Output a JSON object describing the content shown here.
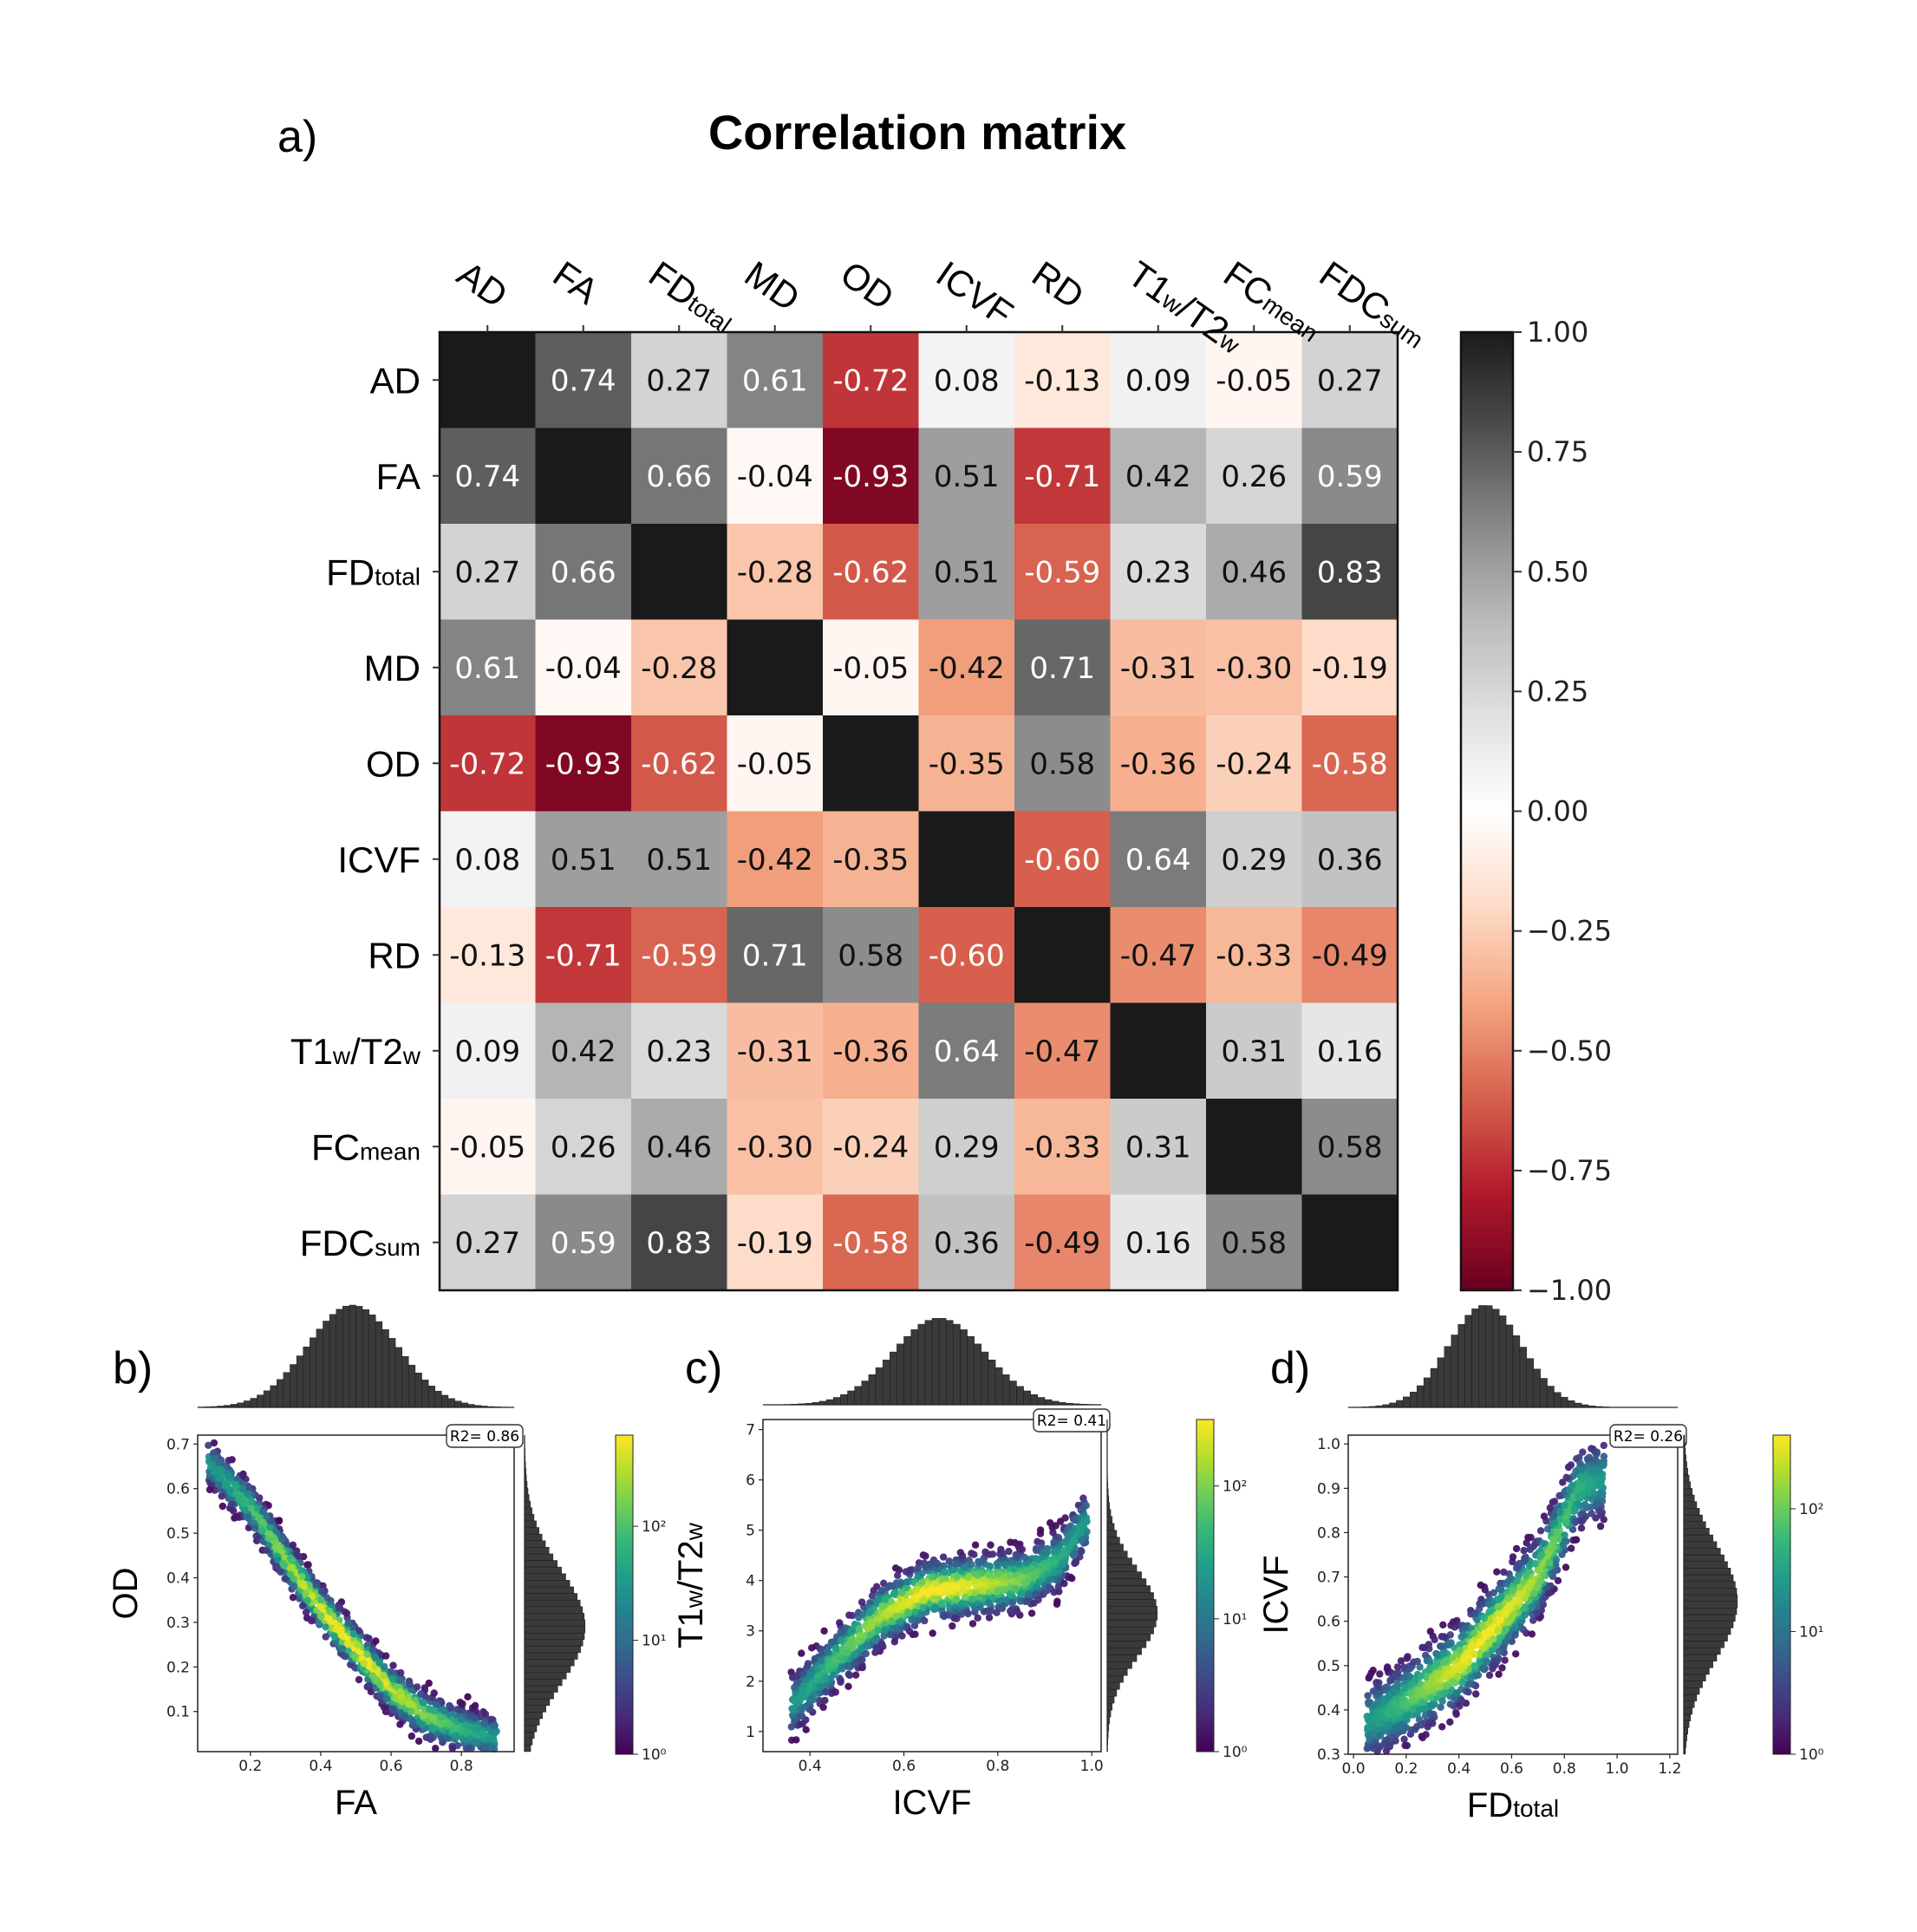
{
  "figure": {
    "panel_a": "a)",
    "panel_b": "b)",
    "panel_c": "c)",
    "panel_d": "d)"
  },
  "chart_data": [
    {
      "type": "heatmap",
      "title": "Correlation matrix",
      "labels": [
        {
          "main": "AD",
          "sub": ""
        },
        {
          "main": "FA",
          "sub": ""
        },
        {
          "main": "FD",
          "sub": "total"
        },
        {
          "main": "MD",
          "sub": ""
        },
        {
          "main": "OD",
          "sub": ""
        },
        {
          "main": "ICVF",
          "sub": ""
        },
        {
          "main": "RD",
          "sub": ""
        },
        {
          "main": "T1",
          "sub": "w",
          "main2": "/T2",
          "sub2": "w"
        },
        {
          "main": "FC",
          "sub": "mean"
        },
        {
          "main": "FDC",
          "sub": "sum"
        }
      ],
      "values": [
        [
          1.0,
          0.74,
          0.27,
          0.61,
          -0.72,
          0.08,
          -0.13,
          0.09,
          -0.05,
          0.27
        ],
        [
          0.74,
          1.0,
          0.66,
          -0.04,
          -0.93,
          0.51,
          -0.71,
          0.42,
          0.26,
          0.59
        ],
        [
          0.27,
          0.66,
          1.0,
          -0.28,
          -0.62,
          0.51,
          -0.59,
          0.23,
          0.46,
          0.83
        ],
        [
          0.61,
          -0.04,
          -0.28,
          1.0,
          -0.05,
          -0.42,
          0.71,
          -0.31,
          -0.3,
          -0.19
        ],
        [
          -0.72,
          -0.93,
          -0.62,
          -0.05,
          1.0,
          -0.35,
          0.58,
          -0.36,
          -0.24,
          -0.58
        ],
        [
          0.08,
          0.51,
          0.51,
          -0.42,
          -0.35,
          1.0,
          -0.6,
          0.64,
          0.29,
          0.36
        ],
        [
          -0.13,
          -0.71,
          -0.59,
          0.71,
          0.58,
          -0.6,
          1.0,
          -0.47,
          -0.33,
          -0.49
        ],
        [
          0.09,
          0.42,
          0.23,
          -0.31,
          -0.36,
          0.64,
          -0.47,
          1.0,
          0.31,
          0.16
        ],
        [
          -0.05,
          0.26,
          0.46,
          -0.3,
          -0.24,
          0.29,
          -0.33,
          0.31,
          1.0,
          0.58
        ],
        [
          0.27,
          0.59,
          0.83,
          -0.19,
          -0.58,
          0.36,
          -0.49,
          0.16,
          0.58,
          1.0
        ]
      ],
      "colorbar": {
        "range": [
          -1,
          1
        ],
        "ticks": [
          "1.00",
          "0.75",
          "0.50",
          "0.25",
          "0.00",
          "−0.25",
          "−0.50",
          "−0.75",
          "−1.00"
        ],
        "colormap": [
          "#67001f",
          "#b2182b",
          "#d6604d",
          "#f4a582",
          "#fddbc7",
          "#ffffff",
          "#e0e0e0",
          "#bababa",
          "#878787",
          "#4d4d4d",
          "#1a1a1a"
        ]
      }
    },
    {
      "type": "hexbin-scatter",
      "panel": "b)",
      "xlabel": {
        "main": "FA",
        "sub": ""
      },
      "ylabel": {
        "main": "OD",
        "sub": ""
      },
      "xlim": [
        0.05,
        0.95
      ],
      "ylim": [
        0.01,
        0.72
      ],
      "xticks": [
        0.2,
        0.4,
        0.6,
        0.8
      ],
      "yticks": [
        0.1,
        0.2,
        0.3,
        0.4,
        0.5,
        0.6,
        0.7
      ],
      "r2_label": "R2= 0.86",
      "ridge": [
        [
          0.08,
          0.66
        ],
        [
          0.2,
          0.56
        ],
        [
          0.3,
          0.44
        ],
        [
          0.4,
          0.33
        ],
        [
          0.5,
          0.24
        ],
        [
          0.6,
          0.15
        ],
        [
          0.7,
          0.09
        ],
        [
          0.8,
          0.06
        ],
        [
          0.9,
          0.04
        ]
      ],
      "spread": 0.05,
      "colorbar": {
        "ticks": [
          "10⁰",
          "10¹",
          "10²"
        ],
        "range": [
          0,
          2.8
        ]
      }
    },
    {
      "type": "hexbin-scatter",
      "panel": "c)",
      "xlabel": {
        "main": "ICVF",
        "sub": ""
      },
      "ylabel": {
        "main": "T1",
        "sub": "w",
        "main2": "/T2",
        "sub2": "w"
      },
      "xlim": [
        0.3,
        1.02
      ],
      "ylim": [
        0.6,
        7.2
      ],
      "xticks": [
        0.4,
        0.6,
        0.8,
        1.0
      ],
      "yticks": [
        1,
        2,
        3,
        4,
        5,
        6,
        7
      ],
      "r2_label": "R2= 0.41",
      "ridge": [
        [
          0.36,
          1.5
        ],
        [
          0.45,
          2.4
        ],
        [
          0.55,
          3.3
        ],
        [
          0.65,
          3.8
        ],
        [
          0.75,
          3.9
        ],
        [
          0.85,
          4.0
        ],
        [
          0.93,
          4.4
        ],
        [
          0.99,
          5.2
        ]
      ],
      "spread": 0.6,
      "colorbar": {
        "ticks": [
          "10⁰",
          "10¹",
          "10²"
        ],
        "range": [
          0,
          2.5
        ]
      }
    },
    {
      "type": "hexbin-scatter",
      "panel": "d)",
      "xlabel": {
        "main": "FD",
        "sub": "total"
      },
      "ylabel": {
        "main": "ICVF",
        "sub": ""
      },
      "xlim": [
        -0.02,
        1.23
      ],
      "ylim": [
        0.3,
        1.02
      ],
      "xticks": [
        0.0,
        0.2,
        0.4,
        0.6,
        0.8,
        1.0,
        1.2
      ],
      "yticks": [
        0.3,
        0.4,
        0.5,
        0.6,
        0.7,
        0.8,
        0.9,
        1.0
      ],
      "r2_label": "R2= 0.26",
      "ridge": [
        [
          0.05,
          0.37
        ],
        [
          0.2,
          0.42
        ],
        [
          0.4,
          0.5
        ],
        [
          0.55,
          0.6
        ],
        [
          0.7,
          0.7
        ],
        [
          0.78,
          0.8
        ],
        [
          0.85,
          0.9
        ],
        [
          0.95,
          0.92
        ]
      ],
      "spread": 0.09,
      "colorbar": {
        "ticks": [
          "10⁰",
          "10¹",
          "10²"
        ],
        "range": [
          0,
          2.6
        ]
      }
    }
  ]
}
